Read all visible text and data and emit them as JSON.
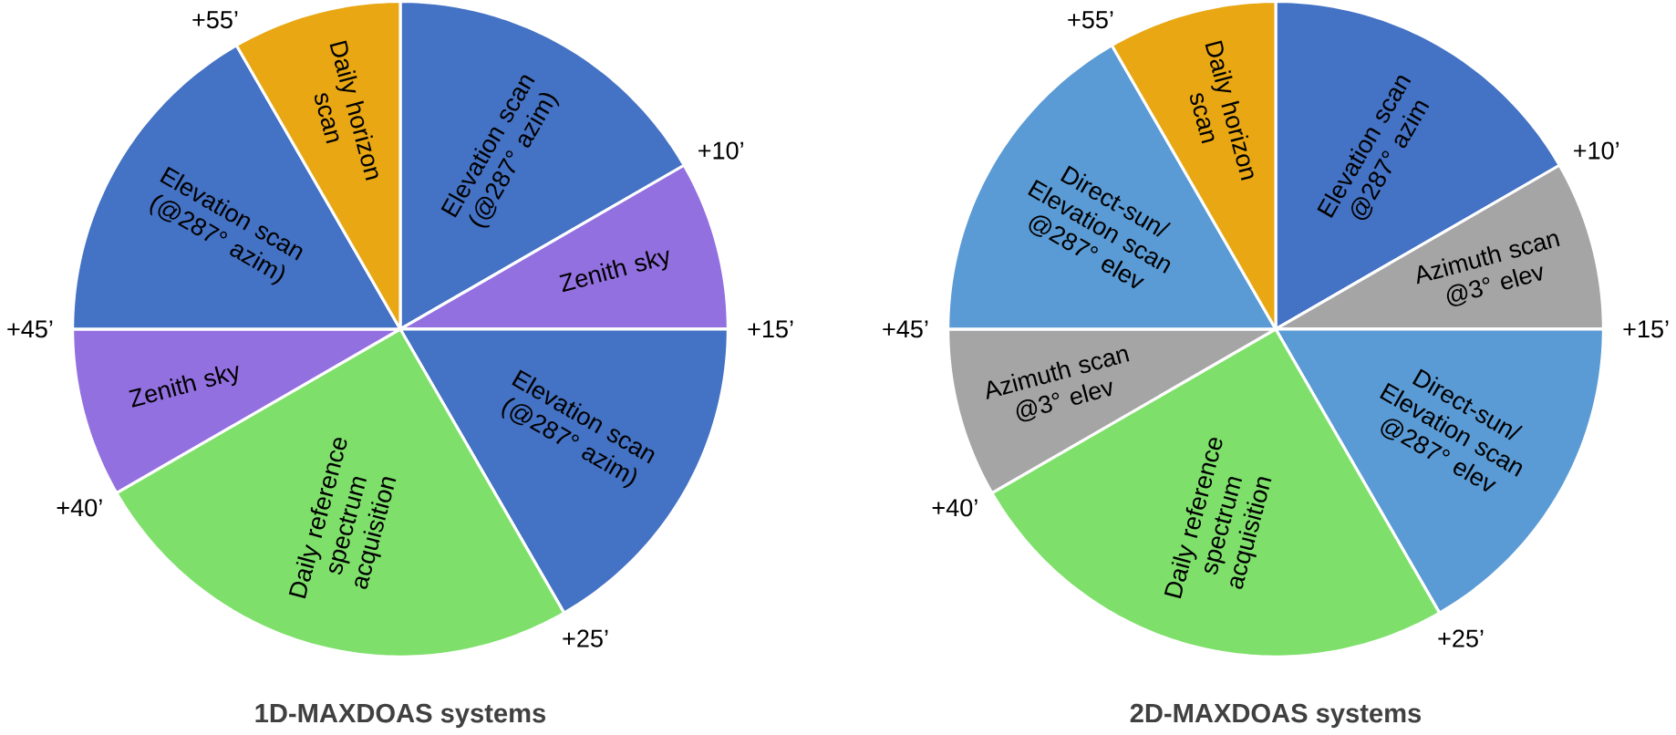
{
  "chart_data": [
    {
      "type": "pie",
      "title": "1D-MAXDOAS systems",
      "categories": [
        "Elevation scan (@287° azim)",
        "Zenith sky",
        "Elevation scan (@287° azim)",
        "Daily reference spectrum acquisition",
        "Zenith sky",
        "Elevation scan (@287° azim)",
        "Daily horizon scan"
      ],
      "values": [
        16.667,
        8.333,
        16.667,
        25,
        8.333,
        16.667,
        8.333
      ],
      "colors": [
        "#4472c4",
        "#9370e0",
        "#4472c4",
        "#7ee06a",
        "#9370e0",
        "#4472c4",
        "#e8a713"
      ],
      "annotations": [
        "+10’",
        "+15’",
        "+25’",
        "+40’",
        "+45’",
        "+55’"
      ]
    },
    {
      "type": "pie",
      "title": "2D-MAXDOAS systems",
      "categories": [
        "Elevation scan @287° azim",
        "Azimuth scan @3° elev",
        "Direct-sun/ Elevation scan @287° elev",
        "Daily reference spectrum acquisition",
        "Azimuth scan @3° elev",
        "Direct-sun/ Elevation scan @287° elev",
        "Daily horizon scan"
      ],
      "values": [
        16.667,
        8.333,
        16.667,
        25,
        8.333,
        16.667,
        8.333
      ],
      "colors": [
        "#4472c4",
        "#a5a5a5",
        "#5b9bd5",
        "#7ee06a",
        "#a5a5a5",
        "#5b9bd5",
        "#e8a713"
      ],
      "annotations": [
        "+10’",
        "+15’",
        "+25’",
        "+40’",
        "+45’",
        "+55’"
      ]
    }
  ]
}
